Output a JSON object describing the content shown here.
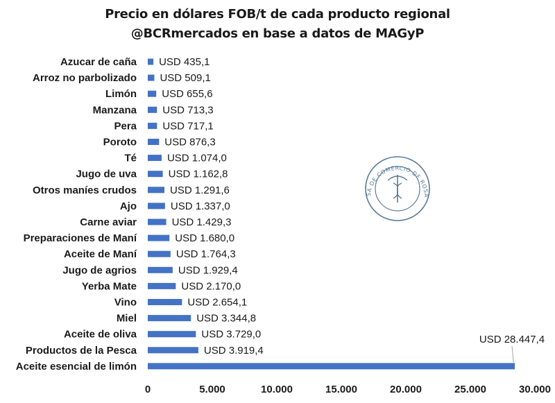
{
  "title_line1": "Precio en dólares FOB/t de cada producto regional",
  "title_line2": "@BCRmercados en base a datos de MAGyP",
  "seal_text": "BOLSA DE COMERCIO DE ROSARIO",
  "colors": {
    "bar": "#4472c4",
    "text": "#1a1a1a",
    "seal": "#5a7a99"
  },
  "chart_data": {
    "type": "bar",
    "orientation": "horizontal",
    "title": "Precio en dólares FOB/t de cada producto regional",
    "subtitle": "@BCRmercados en base a datos de MAGyP",
    "xlabel": "",
    "ylabel": "",
    "xlim": [
      0,
      30000
    ],
    "grid": false,
    "legend": "none",
    "categories": [
      "Azucar de caña",
      "Arroz no parbolizado",
      "Limón",
      "Manzana",
      "Pera",
      "Poroto",
      "Té",
      "Jugo de uva",
      "Otros maníes crudos",
      "Ajo",
      "Carne aviar",
      "Preparaciones de Maní",
      "Aceite de Maní",
      "Jugo de agrios",
      "Yerba Mate",
      "Vino",
      "Miel",
      "Aceite de oliva",
      "Productos de la Pesca",
      "Aceite esencial de limón"
    ],
    "values": [
      435.1,
      509.1,
      655.6,
      713.3,
      717.1,
      876.3,
      1074.0,
      1162.8,
      1291.6,
      1337.0,
      1429.3,
      1680.0,
      1764.3,
      1929.4,
      2170.0,
      2654.1,
      3344.8,
      3729.0,
      3919.4,
      28447.4
    ],
    "data_labels": [
      "USD 435,1",
      "USD 509,1",
      "USD 655,6",
      "USD 713,3",
      "USD 717,1",
      "USD 876,3",
      "USD 1.074,0",
      "USD 1.162,8",
      "USD 1.291,6",
      "USD 1.337,0",
      "USD 1.429,3",
      "USD 1.680,0",
      "USD 1.764,3",
      "USD 1.929,4",
      "USD 2.170,0",
      "USD 2.654,1",
      "USD 3.344,8",
      "USD 3.729,0",
      "USD 3.919,4",
      "USD 28.447,4"
    ],
    "ticks": [
      0,
      5000,
      10000,
      15000,
      20000,
      25000,
      30000
    ],
    "tick_labels": [
      "0",
      "5.000",
      "10.000",
      "15.000",
      "20.000",
      "25.000",
      "30.000"
    ]
  }
}
